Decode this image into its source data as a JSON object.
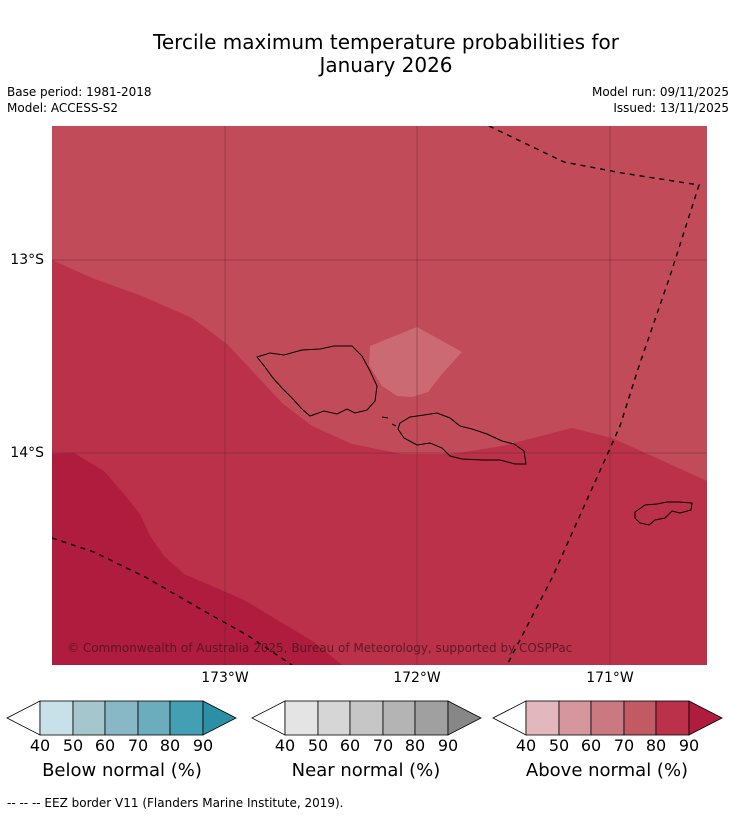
{
  "title_line1": "Tercile maximum temperature probabilities for",
  "title_line2": "January 2026",
  "meta": {
    "base_period": "Base period: 1981-2018",
    "model": "Model: ACCESS-S2",
    "model_run": "Model run: 09/11/2025",
    "issued": "Issued: 13/11/2025"
  },
  "axes": {
    "lat_labels": [
      "13°S",
      "14°S"
    ],
    "lon_labels": [
      "173°W",
      "172°W",
      "171°W"
    ]
  },
  "copyright": "© Commonwealth of Australia 2025, Bureau of Meteorology, supported by COSPPac",
  "colorbars": [
    {
      "title": "Below normal (%)",
      "ticks": [
        "40",
        "50",
        "60",
        "70",
        "80",
        "90"
      ],
      "colors": [
        "#ffffff",
        "#c8e1e8",
        "#a6c6cd",
        "#88b8c5",
        "#6cadbd",
        "#459fb2",
        "#2b8fa6"
      ]
    },
    {
      "title": "Near normal (%)",
      "ticks": [
        "40",
        "50",
        "60",
        "70",
        "80",
        "90"
      ],
      "colors": [
        "#ffffff",
        "#e4e4e4",
        "#d6d6d6",
        "#c6c6c6",
        "#b4b4b4",
        "#a0a0a0",
        "#878787"
      ]
    },
    {
      "title": "Above normal (%)",
      "ticks": [
        "40",
        "50",
        "60",
        "70",
        "80",
        "90"
      ],
      "colors": [
        "#ffffff",
        "#e2b7be",
        "#d5969e",
        "#cb7980",
        "#c25a63",
        "#bb3149",
        "#b01c3d"
      ]
    }
  ],
  "map_colors": {
    "cat_70_80": "#c14b58",
    "cat_80_90": "#bb3149",
    "cat_90_plus": "#b01c3d",
    "cat_60_70": "#cc6a73",
    "gridline": "#5a2a30",
    "eez": "#000000"
  },
  "footnote": "--  --  -- EEZ border V11 (Flanders Marine Institute, 2019)."
}
